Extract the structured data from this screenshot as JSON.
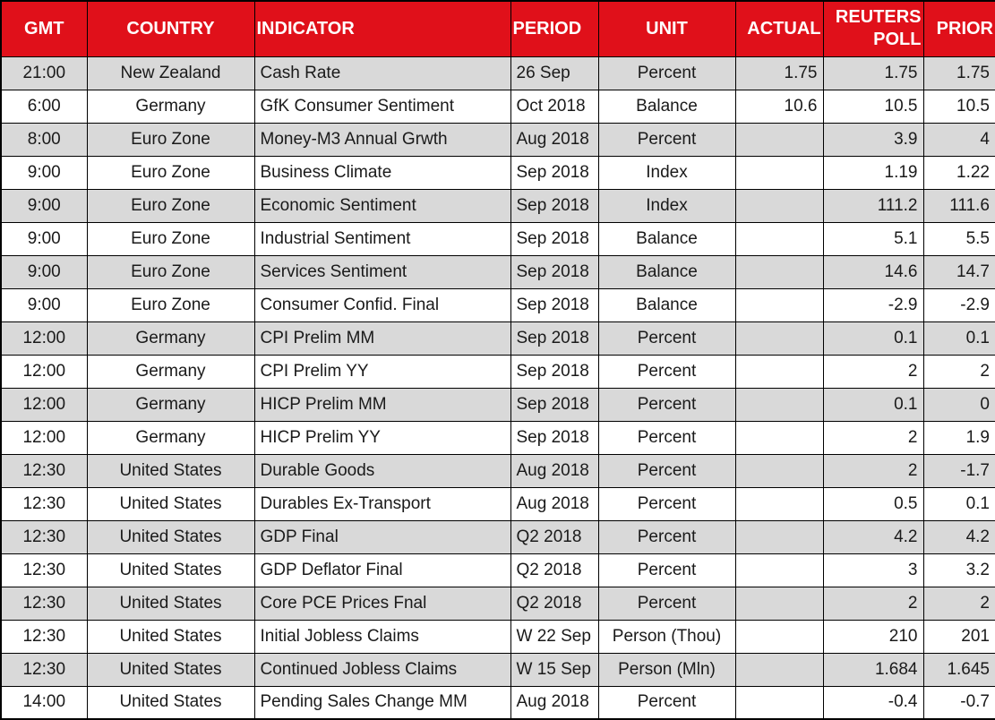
{
  "colors": {
    "header_bg": "#e0101a",
    "band_bg": "#d9d9d9",
    "grid": "#000000",
    "header_fg": "#ffffff"
  },
  "chart_data": {
    "type": "table",
    "columns": [
      {
        "key": "gmt",
        "label": "GMT"
      },
      {
        "key": "country",
        "label": "COUNTRY"
      },
      {
        "key": "indicator",
        "label": "INDICATOR"
      },
      {
        "key": "period",
        "label": "PERIOD"
      },
      {
        "key": "unit",
        "label": "UNIT"
      },
      {
        "key": "actual",
        "label": "ACTUAL"
      },
      {
        "key": "poll",
        "label": "REUTERS POLL"
      },
      {
        "key": "prior",
        "label": "PRIOR"
      }
    ],
    "rows": [
      [
        "21:00",
        "New Zealand",
        "Cash Rate",
        "26 Sep",
        "Percent",
        "1.75",
        "1.75",
        "1.75"
      ],
      [
        "6:00",
        "Germany",
        "GfK Consumer Sentiment",
        "Oct 2018",
        "Balance",
        "10.6",
        "10.5",
        "10.5"
      ],
      [
        "8:00",
        "Euro Zone",
        "Money-M3 Annual Grwth",
        "Aug 2018",
        "Percent",
        "",
        "3.9",
        "4"
      ],
      [
        "9:00",
        "Euro Zone",
        "Business Climate",
        "Sep 2018",
        "Index",
        "",
        "1.19",
        "1.22"
      ],
      [
        "9:00",
        "Euro Zone",
        "Economic Sentiment",
        "Sep 2018",
        "Index",
        "",
        "111.2",
        "111.6"
      ],
      [
        "9:00",
        "Euro Zone",
        "Industrial Sentiment",
        "Sep 2018",
        "Balance",
        "",
        "5.1",
        "5.5"
      ],
      [
        "9:00",
        "Euro Zone",
        "Services Sentiment",
        "Sep 2018",
        "Balance",
        "",
        "14.6",
        "14.7"
      ],
      [
        "9:00",
        "Euro Zone",
        "Consumer Confid. Final",
        "Sep 2018",
        "Balance",
        "",
        "-2.9",
        "-2.9"
      ],
      [
        "12:00",
        "Germany",
        "CPI Prelim MM",
        "Sep 2018",
        "Percent",
        "",
        "0.1",
        "0.1"
      ],
      [
        "12:00",
        "Germany",
        "CPI Prelim YY",
        "Sep 2018",
        "Percent",
        "",
        "2",
        "2"
      ],
      [
        "12:00",
        "Germany",
        "HICP Prelim MM",
        "Sep 2018",
        "Percent",
        "",
        "0.1",
        "0"
      ],
      [
        "12:00",
        "Germany",
        "HICP Prelim YY",
        "Sep 2018",
        "Percent",
        "",
        "2",
        "1.9"
      ],
      [
        "12:30",
        "United States",
        "Durable Goods",
        "Aug 2018",
        "Percent",
        "",
        "2",
        "-1.7"
      ],
      [
        "12:30",
        "United States",
        "Durables Ex-Transport",
        "Aug 2018",
        "Percent",
        "",
        "0.5",
        "0.1"
      ],
      [
        "12:30",
        "United States",
        "GDP Final",
        "Q2 2018",
        "Percent",
        "",
        "4.2",
        "4.2"
      ],
      [
        "12:30",
        "United States",
        "GDP Deflator Final",
        "Q2 2018",
        "Percent",
        "",
        "3",
        "3.2"
      ],
      [
        "12:30",
        "United States",
        "Core PCE Prices Fnal",
        "Q2 2018",
        "Percent",
        "",
        "2",
        "2"
      ],
      [
        "12:30",
        "United States",
        "Initial Jobless Claims",
        "W 22 Sep",
        "Person (Thou)",
        "",
        "210",
        "201"
      ],
      [
        "12:30",
        "United States",
        "Continued Jobless Claims",
        "W 15 Sep",
        "Person (Mln)",
        "",
        "1.684",
        "1.645"
      ],
      [
        "14:00",
        "United States",
        "Pending Sales Change MM",
        "Aug 2018",
        "Percent",
        "",
        "-0.4",
        "-0.7"
      ]
    ]
  }
}
